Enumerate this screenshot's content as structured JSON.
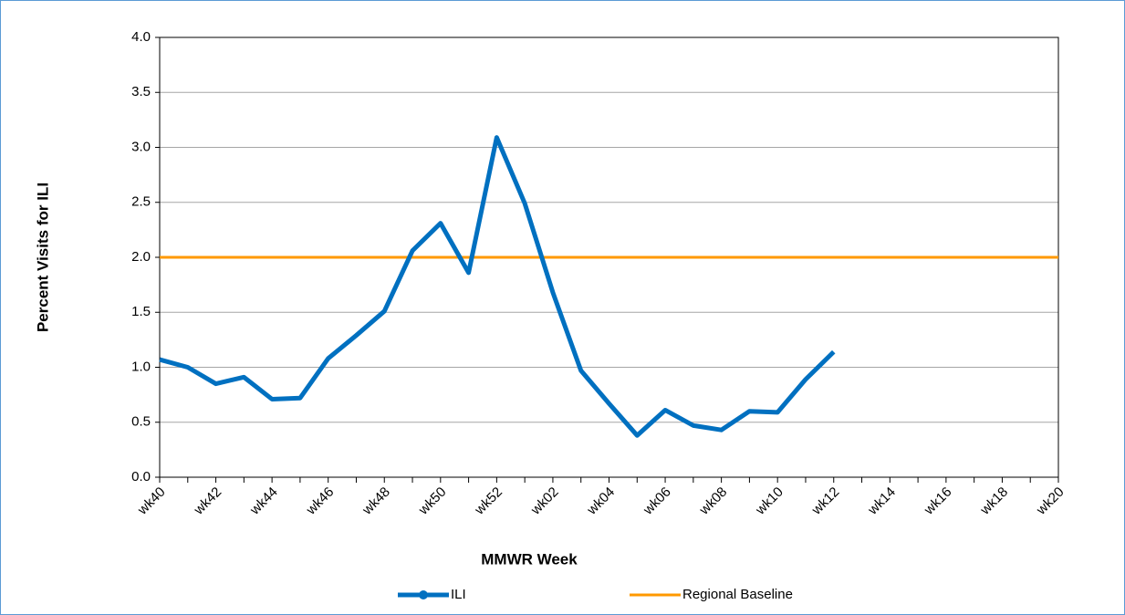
{
  "chart_data": {
    "type": "line",
    "x_label": "MMWR Week",
    "y_label": "Percent Visits for ILI",
    "categories": [
      "wk40",
      null,
      "wk42",
      null,
      "wk44",
      null,
      "wk46",
      null,
      "wk48",
      null,
      "wk50",
      null,
      "wk52",
      null,
      "wk02",
      null,
      "wk04",
      null,
      "wk06",
      null,
      "wk08",
      null,
      "wk10",
      null,
      "wk12",
      null,
      "wk14",
      null,
      "wk16",
      null,
      "wk18",
      null,
      "wk20"
    ],
    "series": [
      {
        "name": "ILI",
        "color": "#0070c0",
        "marker": true,
        "values": [
          1.07,
          1.0,
          0.85,
          0.91,
          0.71,
          0.72,
          1.08,
          1.29,
          1.51,
          2.06,
          2.31,
          1.86,
          3.09,
          2.49,
          1.68,
          0.97,
          0.67,
          0.38,
          0.61,
          0.47,
          0.43,
          0.6,
          0.59,
          0.89,
          1.14,
          null,
          null,
          null,
          null,
          null,
          null,
          null,
          null
        ]
      },
      {
        "name": "Regional Baseline",
        "color": "#ff9900",
        "marker": false,
        "values": [
          2.0,
          2.0,
          2.0,
          2.0,
          2.0,
          2.0,
          2.0,
          2.0,
          2.0,
          2.0,
          2.0,
          2.0,
          2.0,
          2.0,
          2.0,
          2.0,
          2.0,
          2.0,
          2.0,
          2.0,
          2.0,
          2.0,
          2.0,
          2.0,
          2.0,
          2.0,
          2.0,
          2.0,
          2.0,
          2.0,
          2.0,
          2.0,
          2.0
        ]
      }
    ],
    "ylim": [
      0,
      4
    ],
    "yticks": [
      {
        "value": 0,
        "label": "0.0"
      },
      0.5,
      {
        "value": 1,
        "label": "1.0"
      },
      1.5,
      {
        "value": 2,
        "label": "2.0"
      },
      2.5,
      {
        "value": 3,
        "label": "3.0"
      },
      3.5,
      {
        "value": 4,
        "label": "4.0"
      }
    ],
    "grid": true,
    "legend": "bottom"
  }
}
